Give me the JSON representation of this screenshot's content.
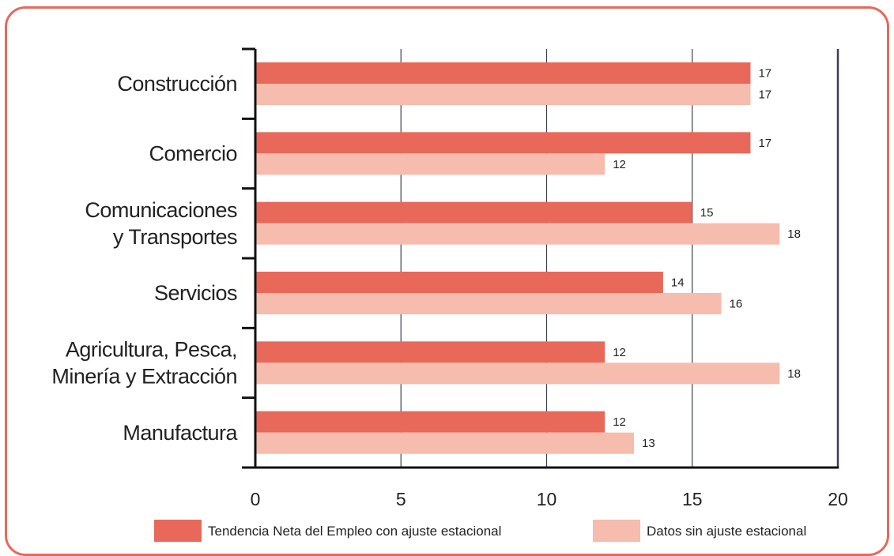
{
  "chart_data": {
    "type": "bar",
    "orientation": "horizontal",
    "categories": [
      [
        "Construcción"
      ],
      [
        "Comercio"
      ],
      [
        "Comunicaciones",
        "y Transportes"
      ],
      [
        "Servicios"
      ],
      [
        "Agricultura, Pesca,",
        "Minería y Extracción"
      ],
      [
        "Manufactura"
      ]
    ],
    "series": [
      {
        "name": "Tendencia Neta del Empleo con ajuste estacional",
        "color": "#e8685a",
        "values": [
          17,
          17,
          15,
          14,
          12,
          12
        ]
      },
      {
        "name": "Datos sin ajuste estacional",
        "color": "#f6bcad",
        "values": [
          17,
          12,
          18,
          16,
          18,
          13
        ]
      }
    ],
    "xlim": [
      0,
      20
    ],
    "xticks": [
      0,
      5,
      10,
      15,
      20
    ],
    "grid": true,
    "legend": "bottom"
  }
}
